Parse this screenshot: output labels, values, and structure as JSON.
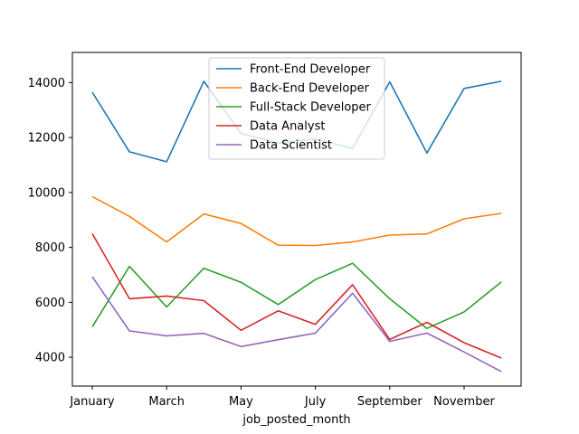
{
  "chart_data": {
    "type": "line",
    "title": "",
    "xlabel": "job_posted_month",
    "ylabel": "",
    "x": [
      "January",
      "February",
      "March",
      "April",
      "May",
      "June",
      "July",
      "August",
      "September",
      "October",
      "November",
      "December"
    ],
    "xtick_labels": [
      "January",
      "March",
      "May",
      "July",
      "September",
      "November"
    ],
    "yticks": [
      4000,
      6000,
      8000,
      10000,
      12000,
      14000
    ],
    "ylim": [
      2950,
      15100
    ],
    "grid": false,
    "legend_position": "top-center",
    "series": [
      {
        "name": "Front-End Developer",
        "color": "#1f77b4",
        "values": [
          13650,
          11480,
          11120,
          14050,
          12150,
          11800,
          11950,
          11600,
          14030,
          11440,
          13790,
          14050
        ]
      },
      {
        "name": "Back-End Developer",
        "color": "#ff7f0e",
        "values": [
          9850,
          9130,
          8200,
          9220,
          8870,
          8080,
          8070,
          8200,
          8450,
          8490,
          9040,
          9240
        ]
      },
      {
        "name": "Full-Stack Developer",
        "color": "#2ca02c",
        "values": [
          5110,
          7310,
          5830,
          7240,
          6730,
          5920,
          6830,
          7420,
          6130,
          5050,
          5650,
          6740
        ]
      },
      {
        "name": "Data Analyst",
        "color": "#d62728",
        "values": [
          8500,
          6130,
          6230,
          6060,
          4980,
          5690,
          5200,
          6640,
          4650,
          5270,
          4530,
          3970
        ]
      },
      {
        "name": "Data Scientist",
        "color": "#9467bd",
        "values": [
          6930,
          4960,
          4780,
          4870,
          4390,
          4640,
          4880,
          6330,
          4580,
          4880,
          4190,
          3480
        ]
      }
    ]
  }
}
